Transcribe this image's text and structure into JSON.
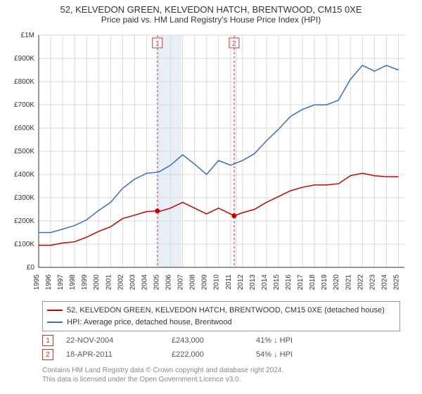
{
  "title": {
    "line1": "52, KELVEDON GREEN, KELVEDON HATCH, BRENTWOOD, CM15 0XE",
    "line2": "Price paid vs. HM Land Registry's House Price Index (HPI)"
  },
  "chart": {
    "type": "line",
    "background_color": "#ffffff",
    "grid_color": "#d9d9d9",
    "axis_color": "#333333",
    "tick_font_size": 10,
    "x_years": [
      1995,
      1996,
      1997,
      1998,
      1999,
      2000,
      2001,
      2002,
      2003,
      2004,
      2005,
      2006,
      2007,
      2008,
      2009,
      2010,
      2011,
      2012,
      2013,
      2014,
      2015,
      2016,
      2017,
      2018,
      2019,
      2020,
      2021,
      2022,
      2023,
      2024,
      2025
    ],
    "xlim": [
      1995,
      2025.5
    ],
    "ylim": [
      0,
      1000000
    ],
    "ytick_step": 100000,
    "ytick_labels": [
      "£0",
      "£100K",
      "£200K",
      "£300K",
      "£400K",
      "£500K",
      "£600K",
      "£700K",
      "£800K",
      "£900K",
      "£1M"
    ],
    "event_band_color": "#e8eef6",
    "event_band_border": "#cc3333",
    "events": [
      {
        "label": "1",
        "x": 2004.9,
        "band_width_years": 2.0
      },
      {
        "label": "2",
        "x": 2011.3,
        "band_width_years": 0.25
      }
    ],
    "series": [
      {
        "name": "price_paid",
        "color": "#cc0000",
        "line_width": 1.5,
        "points": [
          [
            1995,
            95000
          ],
          [
            1996,
            95000
          ],
          [
            1997,
            105000
          ],
          [
            1998,
            110000
          ],
          [
            1999,
            130000
          ],
          [
            2000,
            155000
          ],
          [
            2001,
            175000
          ],
          [
            2002,
            210000
          ],
          [
            2003,
            225000
          ],
          [
            2004,
            240000
          ],
          [
            2004.9,
            243000
          ],
          [
            2005,
            240000
          ],
          [
            2006,
            255000
          ],
          [
            2007,
            280000
          ],
          [
            2008,
            255000
          ],
          [
            2009,
            230000
          ],
          [
            2010,
            255000
          ],
          [
            2011,
            230000
          ],
          [
            2011.3,
            222000
          ],
          [
            2012,
            235000
          ],
          [
            2013,
            250000
          ],
          [
            2014,
            280000
          ],
          [
            2015,
            305000
          ],
          [
            2016,
            330000
          ],
          [
            2017,
            345000
          ],
          [
            2018,
            355000
          ],
          [
            2019,
            355000
          ],
          [
            2020,
            360000
          ],
          [
            2021,
            395000
          ],
          [
            2022,
            405000
          ],
          [
            2023,
            395000
          ],
          [
            2024,
            390000
          ],
          [
            2025,
            390000
          ]
        ]
      },
      {
        "name": "hpi",
        "color": "#3a6fb7",
        "line_width": 1.5,
        "points": [
          [
            1995,
            150000
          ],
          [
            1996,
            150000
          ],
          [
            1997,
            165000
          ],
          [
            1998,
            180000
          ],
          [
            1999,
            205000
          ],
          [
            2000,
            245000
          ],
          [
            2001,
            280000
          ],
          [
            2002,
            340000
          ],
          [
            2003,
            380000
          ],
          [
            2004,
            405000
          ],
          [
            2005,
            410000
          ],
          [
            2006,
            440000
          ],
          [
            2007,
            485000
          ],
          [
            2008,
            445000
          ],
          [
            2009,
            400000
          ],
          [
            2010,
            460000
          ],
          [
            2011,
            440000
          ],
          [
            2012,
            460000
          ],
          [
            2013,
            490000
          ],
          [
            2014,
            545000
          ],
          [
            2015,
            595000
          ],
          [
            2016,
            650000
          ],
          [
            2017,
            680000
          ],
          [
            2018,
            700000
          ],
          [
            2019,
            700000
          ],
          [
            2020,
            720000
          ],
          [
            2021,
            810000
          ],
          [
            2022,
            870000
          ],
          [
            2023,
            845000
          ],
          [
            2024,
            870000
          ],
          [
            2025,
            850000
          ]
        ]
      }
    ]
  },
  "legend": {
    "items": [
      {
        "color": "#cc0000",
        "label": "52, KELVEDON GREEN, KELVEDON HATCH, BRENTWOOD, CM15 0XE (detached house)"
      },
      {
        "color": "#3a6fb7",
        "label": "HPI: Average price, detached house, Brentwood"
      }
    ]
  },
  "markers": [
    {
      "n": "1",
      "border": "#cc3333",
      "date": "22-NOV-2004",
      "price": "£243,000",
      "delta": "41% ↓ HPI"
    },
    {
      "n": "2",
      "border": "#cc3333",
      "date": "18-APR-2011",
      "price": "£222,000",
      "delta": "54% ↓ HPI"
    }
  ],
  "attribution": {
    "line1": "Contains HM Land Registry data © Crown copyright and database right 2024.",
    "line2": "This data is licensed under the Open Government Licence v3.0."
  }
}
